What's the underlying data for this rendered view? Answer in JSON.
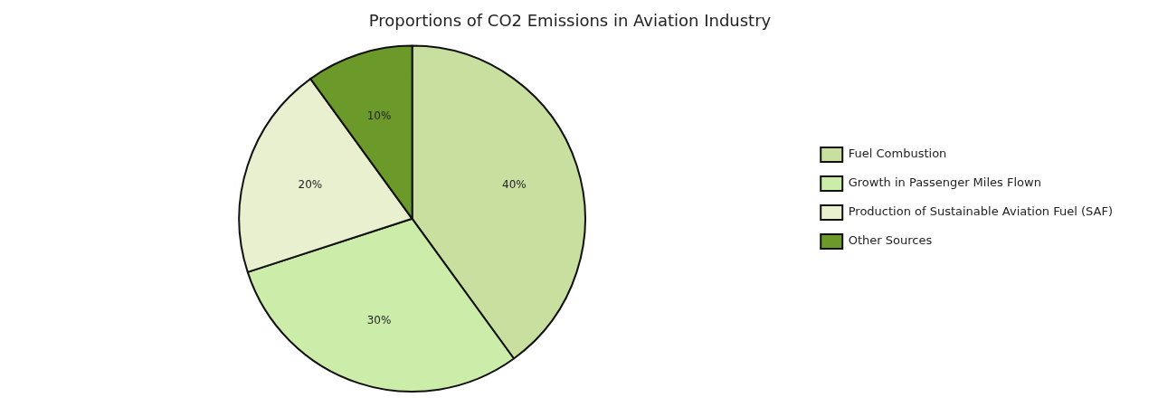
{
  "chart_data": {
    "type": "pie",
    "title": "Proportions of CO2 Emissions in Aviation Industry",
    "categories": [
      "Fuel Combustion",
      "Growth in Passenger Miles Flown",
      "Production of Sustainable Aviation Fuel (SAF)",
      "Other Sources"
    ],
    "values": [
      40,
      30,
      20,
      10
    ],
    "value_labels": [
      "40%",
      "30%",
      "20%",
      "10%"
    ],
    "colors": [
      "#c8dfa0",
      "#ccedaa",
      "#e8f0d0",
      "#6b9a2a"
    ],
    "data_labels": true,
    "legend": "right"
  }
}
